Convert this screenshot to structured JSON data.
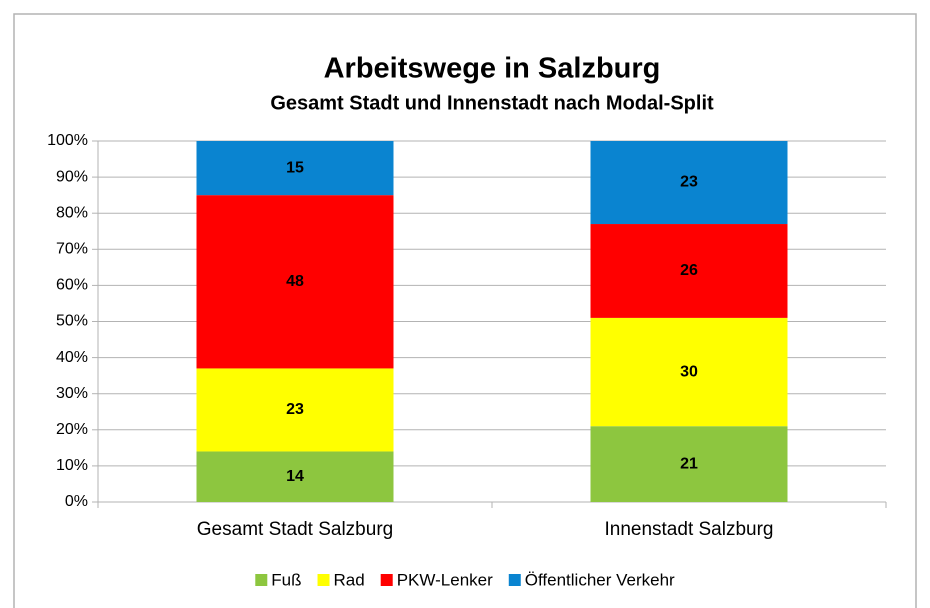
{
  "chart_data": {
    "type": "stacked_bar",
    "title": "Arbeitswege in Salzburg",
    "subtitle": "Gesamt Stadt und Innenstadt nach Modal-Split",
    "categories": [
      "Gesamt Stadt Salzburg",
      "Innenstadt Salzburg"
    ],
    "series": [
      {
        "name": "Fuß",
        "color": "#8dc63f",
        "values": [
          14,
          21
        ]
      },
      {
        "name": "Rad",
        "color": "#ffff00",
        "values": [
          23,
          30
        ]
      },
      {
        "name": "PKW-Lenker",
        "color": "#ff0000",
        "values": [
          48,
          26
        ]
      },
      {
        "name": "Öffentlicher Verkehr",
        "color": "#0a84d0",
        "values": [
          15,
          23
        ]
      }
    ],
    "ylim": [
      0,
      100
    ],
    "yticks": [
      {
        "value": 0,
        "label": "0%"
      },
      {
        "value": 10,
        "label": "10%"
      },
      {
        "value": 20,
        "label": "20%"
      },
      {
        "value": 30,
        "label": "30%"
      },
      {
        "value": 40,
        "label": "40%"
      },
      {
        "value": 50,
        "label": "50%"
      },
      {
        "value": 60,
        "label": "60%"
      },
      {
        "value": 70,
        "label": "70%"
      },
      {
        "value": 80,
        "label": "80%"
      },
      {
        "value": 90,
        "label": "90%"
      },
      {
        "value": 100,
        "label": "100%"
      }
    ],
    "grid": true,
    "legend": "bottom"
  }
}
